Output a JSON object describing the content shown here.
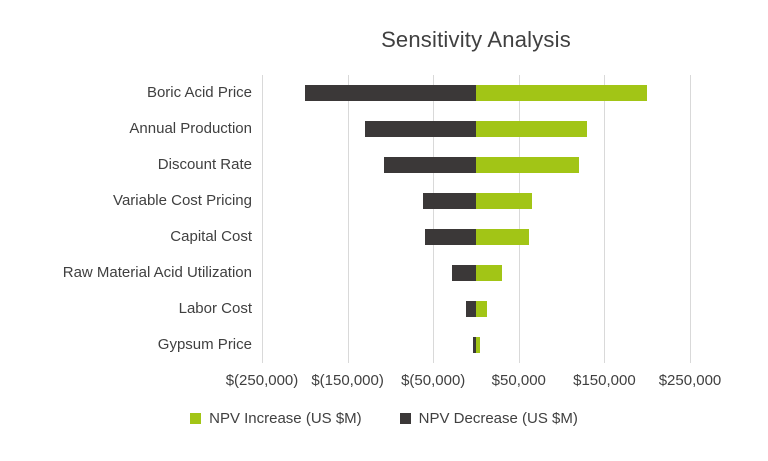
{
  "chart_data": {
    "type": "bar",
    "orientation": "horizontal",
    "title": "Sensitivity Analysis",
    "categories": [
      "Boric Acid Price",
      "Annual Production",
      "Discount Rate",
      "Variable Cost Pricing",
      "Capital Cost",
      "Raw Material Acid Utilization",
      "Labor Cost",
      "Gypsum Price"
    ],
    "series": [
      {
        "name": "NPV Increase (US $M)",
        "color": "#a2c516",
        "values": [
          200000,
          130000,
          120000,
          65000,
          62000,
          30000,
          13000,
          5000
        ]
      },
      {
        "name": "NPV Decrease (US $M)",
        "color": "#3b3838",
        "values": [
          -200000,
          -130000,
          -108000,
          -62000,
          -60000,
          -28000,
          -12000,
          -4000
        ]
      }
    ],
    "xlim": [
      -250000,
      250000
    ],
    "x_ticks": [
      -250000,
      -150000,
      -50000,
      50000,
      150000,
      250000
    ],
    "x_tick_labels": [
      "$(250,000)",
      "$(150,000)",
      "$(50,000)",
      "$50,000",
      "$150,000",
      "$250,000"
    ],
    "grid": true,
    "legend_position": "bottom",
    "colors": {
      "gridline": "#d9d9d9",
      "text": "#404040",
      "background": "#ffffff"
    }
  }
}
